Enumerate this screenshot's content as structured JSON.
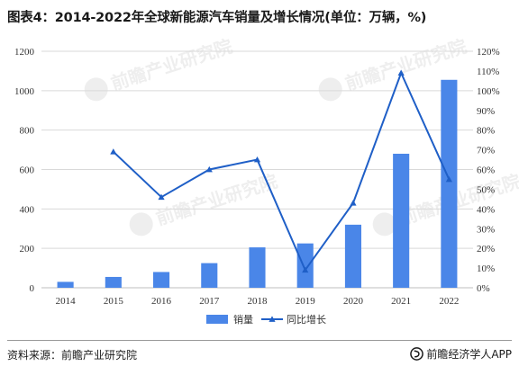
{
  "title": "图表4：2014-2022年全球新能源汽车销量及增长情况(单位：万辆，%)",
  "source": "资料来源：前瞻产业研究院",
  "brand": "前瞻经济学人APP",
  "watermark": "前瞻产业研究院",
  "colors": {
    "bar": "#4A86E8",
    "line": "#1F5FC7",
    "grid": "#D9D9D9",
    "axis": "#BFBFBF"
  },
  "chart_data": {
    "type": "bar",
    "categories": [
      "2014",
      "2015",
      "2016",
      "2017",
      "2018",
      "2019",
      "2020",
      "2021",
      "2022"
    ],
    "series": [
      {
        "name": "销量",
        "type": "bar",
        "axis": "left",
        "values": [
          30,
          55,
          80,
          125,
          205,
          225,
          320,
          680,
          1055
        ]
      },
      {
        "name": "同比增长",
        "type": "line",
        "axis": "right",
        "marker": "triangle",
        "values": [
          null,
          0.69,
          0.46,
          0.6,
          0.65,
          0.09,
          0.43,
          1.09,
          0.55
        ]
      }
    ],
    "y_left": {
      "min": 0,
      "max": 1200,
      "ticks": [
        0,
        200,
        400,
        600,
        800,
        1000,
        1200
      ]
    },
    "y_right": {
      "min": 0,
      "max": 1.2,
      "step": 0.1,
      "format": "percent"
    },
    "grid": true,
    "legend_position": "bottom"
  }
}
